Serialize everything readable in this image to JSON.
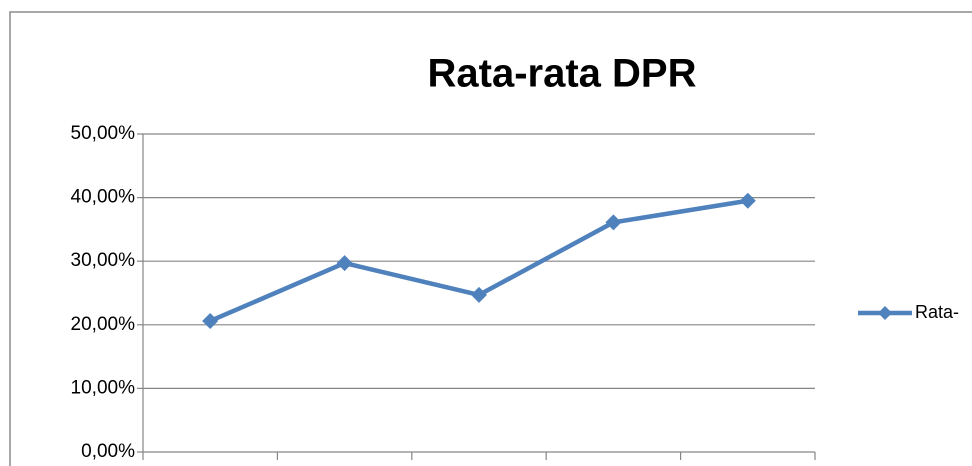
{
  "chart_data": {
    "type": "line",
    "title": "Rata-rata DPR",
    "categories": [
      null,
      null,
      null,
      null,
      null
    ],
    "series": [
      {
        "name": "Rata-",
        "color": "#4f81bd",
        "values": [
          20.6,
          29.7,
          24.7,
          36.1,
          39.5
        ]
      }
    ],
    "ylim": [
      0,
      50
    ],
    "yticks": [
      {
        "value": 0,
        "label": "0,00%"
      },
      {
        "value": 10,
        "label": "10,00%"
      },
      {
        "value": 20,
        "label": "20,00%"
      },
      {
        "value": 30,
        "label": "30,00%"
      },
      {
        "value": 40,
        "label": "40,00%"
      },
      {
        "value": 50,
        "label": "50,00%"
      }
    ],
    "grid": true,
    "legend": "right"
  }
}
